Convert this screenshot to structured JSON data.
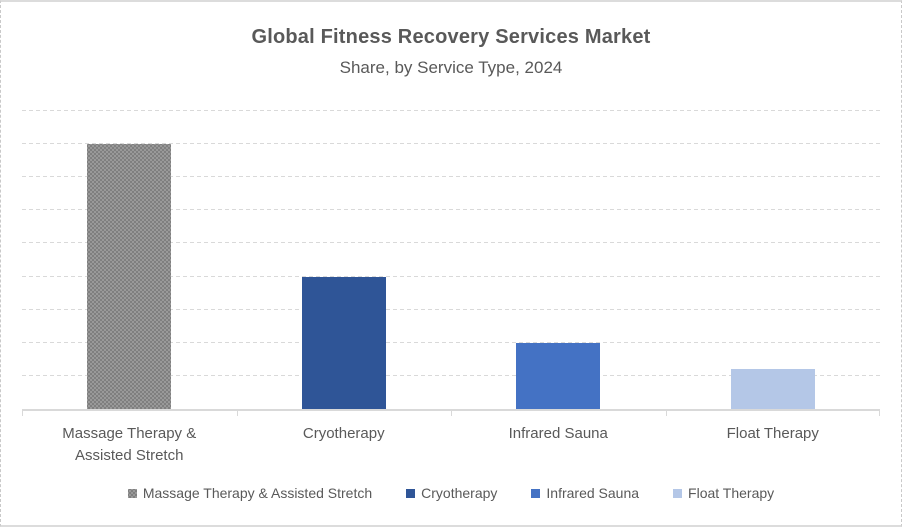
{
  "chart_data": {
    "type": "bar",
    "title": "Global Fitness Recovery Services Market",
    "subtitle": "Share, by Service Type, 2024",
    "xlabel": "",
    "ylabel": "",
    "ylim": [
      0,
      45
    ],
    "gridline_step": 5,
    "grid": true,
    "y_axis_labels_visible": false,
    "legend_position": "bottom",
    "categories": [
      "Massage Therapy & Assisted Stretch",
      "Cryotherapy",
      "Infrared Sauna",
      "Float Therapy"
    ],
    "values": [
      40,
      20,
      10,
      6
    ],
    "bars": [
      {
        "label": "Massage Therapy & Assisted Stretch",
        "value": 40,
        "color": "#7F7F7F",
        "pattern": "dotted-grid"
      },
      {
        "label": "Cryotherapy",
        "value": 20,
        "color": "#2F5597",
        "pattern": null
      },
      {
        "label": "Infrared Sauna",
        "value": 10,
        "color": "#4472C4",
        "pattern": null
      },
      {
        "label": "Float Therapy",
        "value": 6,
        "color": "#B4C7E7",
        "pattern": null
      }
    ],
    "colors": {
      "text": "#595959",
      "gridline": "#D9D9D9",
      "axis": "#D9D9D9"
    }
  }
}
